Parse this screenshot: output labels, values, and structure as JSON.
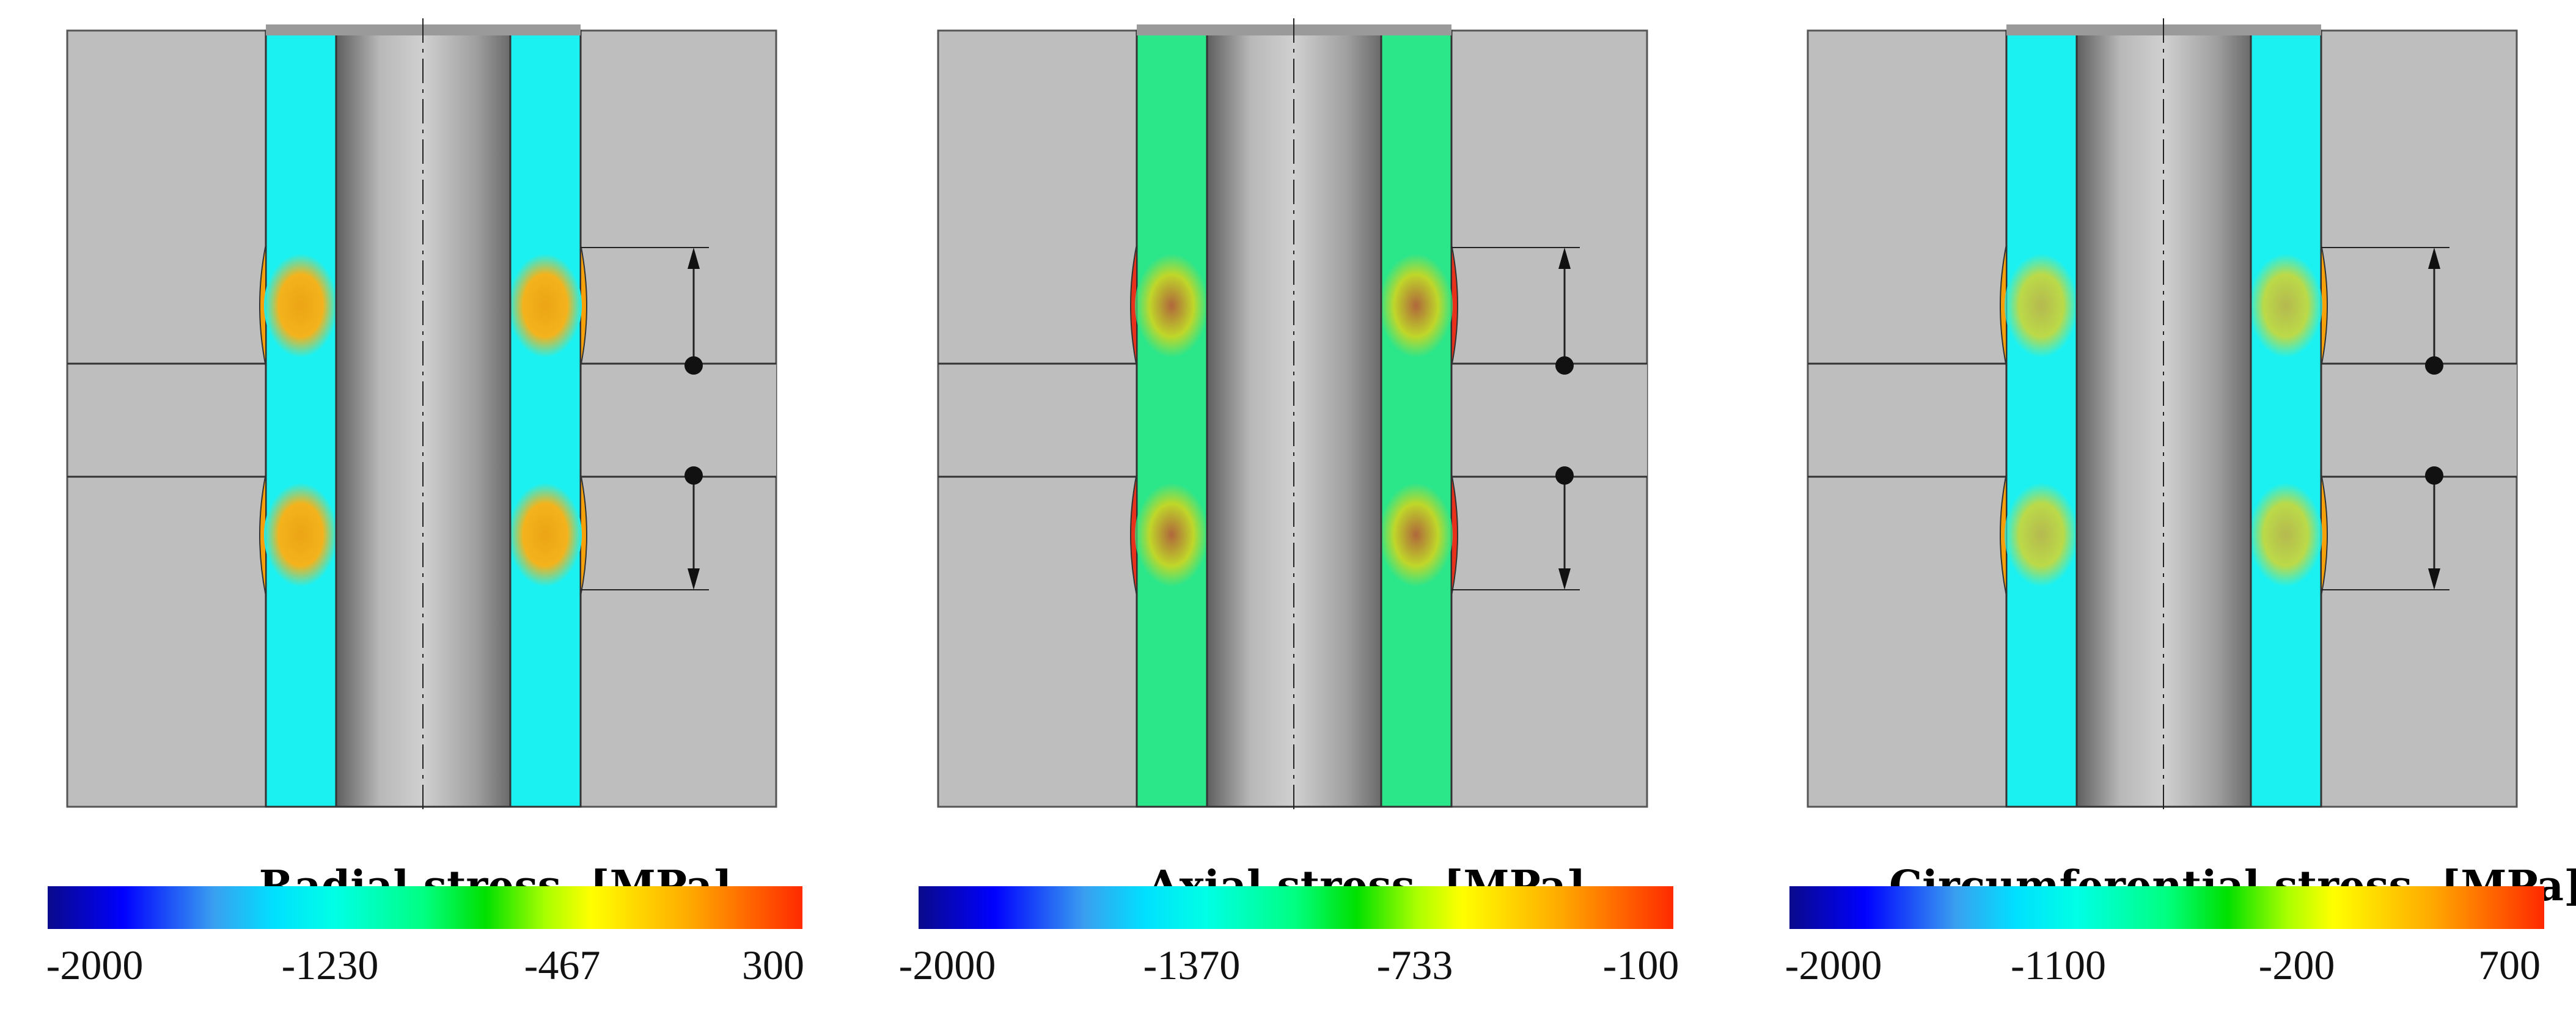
{
  "panels": [
    {
      "id": "radial",
      "title": "Radial stress",
      "unit": "[MPa]",
      "colorbar": {
        "min": -2000,
        "max": 300,
        "ticks": [
          "-2000",
          "-1230",
          "-467",
          "300"
        ]
      }
    },
    {
      "id": "axial",
      "title": "Axial stress",
      "unit": "[MPa]",
      "colorbar": {
        "min": -2000,
        "max": -100,
        "ticks": [
          "-2000",
          "-1370",
          "-733",
          "-100"
        ]
      }
    },
    {
      "id": "circumferential",
      "title": "Circumferential stress",
      "unit": "[MPa]",
      "colorbar": {
        "min": -2000,
        "max": 700,
        "ticks": [
          "-2000",
          "-1100",
          "-200",
          "700"
        ]
      }
    }
  ],
  "colors": {
    "background_gray": "#bebebe",
    "tube_cyan": "#1cf1f1",
    "tube_green": "#2ce68a",
    "hot_orange": "#f7a10a",
    "hot_red": "#e8301a",
    "mandrel_dark": "#8c8c8c"
  }
}
